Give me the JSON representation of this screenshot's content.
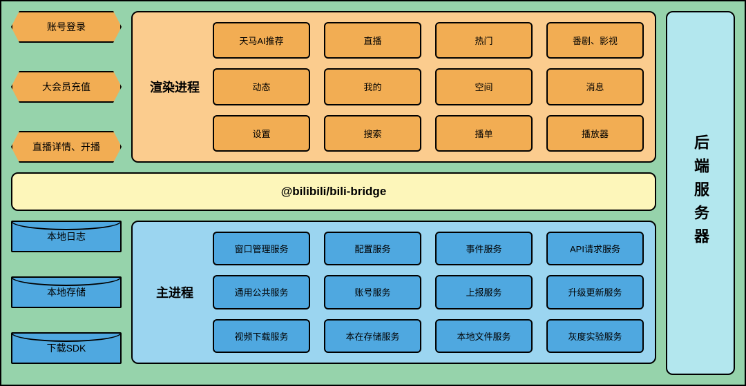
{
  "colors": {
    "outer_bg": "#96d3ab",
    "border": "#000000",
    "orange": "#f2ad53",
    "render_panel_bg": "#fbcc8e",
    "blue": "#4fa8e0",
    "main_panel_bg": "#9bd5f0",
    "bridge_bg": "#fdf6ba",
    "server_bg": "#b3e7ee"
  },
  "left_top_buttons": [
    "账号登录",
    "大会员充值",
    "直播详情、开播"
  ],
  "render_process": {
    "title": "渲染进程",
    "modules": [
      "天马AI推荐",
      "直播",
      "热门",
      "番剧、影视",
      "动态",
      "我的",
      "空间",
      "消息",
      "设置",
      "搜索",
      "播单",
      "播放器"
    ]
  },
  "bridge_label": "@bilibili/bili-bridge",
  "left_bottom_buttons": [
    "本地日志",
    "本地存储",
    "下载SDK"
  ],
  "main_process": {
    "title": "主进程",
    "modules": [
      "窗口管理服务",
      "配置服务",
      "事件服务",
      "API请求服务",
      "通用公共服务",
      "账号服务",
      "上报服务",
      "升级更新服务",
      "视频下载服务",
      "本在存储服务",
      "本地文件服务",
      "灰度实验服务"
    ]
  },
  "server_label": "后端服务器",
  "typography": {
    "panel_title_size": 18,
    "cell_size": 13,
    "bridge_size": 17,
    "server_size": 22
  }
}
